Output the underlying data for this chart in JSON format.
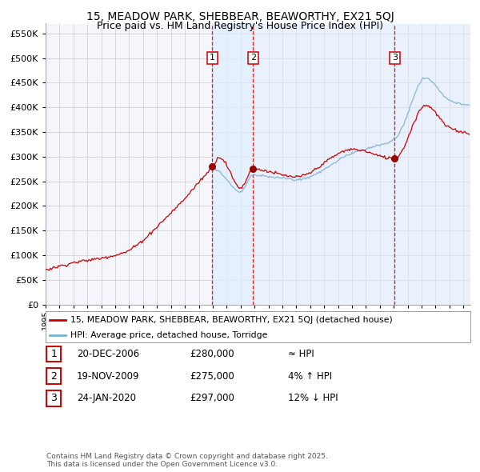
{
  "title1": "15, MEADOW PARK, SHEBBEAR, BEAWORTHY, EX21 5QJ",
  "title2": "Price paid vs. HM Land Registry's House Price Index (HPI)",
  "ylabel_ticks": [
    "£0",
    "£50K",
    "£100K",
    "£150K",
    "£200K",
    "£250K",
    "£300K",
    "£350K",
    "£400K",
    "£450K",
    "£500K",
    "£550K"
  ],
  "ytick_vals": [
    0,
    50000,
    100000,
    150000,
    200000,
    250000,
    300000,
    350000,
    400000,
    450000,
    500000,
    550000
  ],
  "ylim": [
    0,
    570000
  ],
  "sale_events": [
    {
      "label": "1",
      "date_dec": 2006.97,
      "price": 280000,
      "note": "20-DEC-2006",
      "amount": "£280,000",
      "rel": "≈ HPI"
    },
    {
      "label": "2",
      "date_dec": 2009.89,
      "price": 275000,
      "note": "19-NOV-2009",
      "amount": "£275,000",
      "rel": "4% ↑ HPI"
    },
    {
      "label": "3",
      "date_dec": 2020.07,
      "price": 297000,
      "note": "24-JAN-2020",
      "amount": "£297,000",
      "rel": "12% ↓ HPI"
    }
  ],
  "legend_line1": "15, MEADOW PARK, SHEBBEAR, BEAWORTHY, EX21 5QJ (detached house)",
  "legend_line2": "HPI: Average price, detached house, Torridge",
  "line_color_red": "#cc0000",
  "line_color_blue": "#7ab0d4",
  "shade_color": "#ddeeff",
  "vline_color": "#cc0000",
  "grid_color": "#cccccc",
  "bg_color": "#ffffff",
  "plot_bg_color": "#f5f5fc",
  "footnote": "Contains HM Land Registry data © Crown copyright and database right 2025.\nThis data is licensed under the Open Government Licence v3.0."
}
